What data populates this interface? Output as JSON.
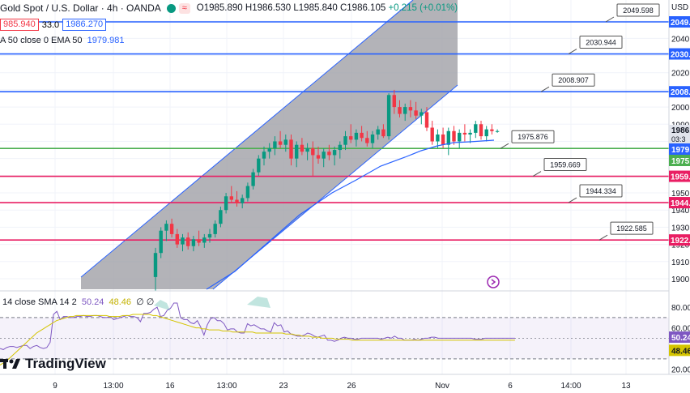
{
  "header": {
    "title": "Gold Spot / U.S. Dollar · 4h · OANDA",
    "open": "O1985.890",
    "high": "H1986.530",
    "low": "L1985.840",
    "close": "C1986.105",
    "change": "+0.215 (+0.01%)",
    "sell_price": "985.940",
    "spread": "33.0",
    "buy_price": "1986.270",
    "ema_label": "A 50 close 0 EMA 50",
    "ema_value": "1979.981"
  },
  "branding": {
    "logo_text": "TradingView"
  },
  "axis": {
    "currency": "USD",
    "ticks": [
      "2050.0",
      "2040.0",
      "2030.0",
      "2020.0",
      "2010.0",
      "2000.0",
      "1990.0",
      "1980.0",
      "1970.0",
      "1960.0",
      "1950.0",
      "1940.0",
      "1930.0",
      "1920.0",
      "1910.0",
      "1900.0"
    ],
    "rsi_ticks": [
      "80.00",
      "60.00",
      "40.00",
      "20.00"
    ],
    "x_ticks": [
      "9",
      "13:00",
      "16",
      "13:00",
      "23",
      "26",
      "Nov",
      "6",
      "14:00",
      "13"
    ],
    "last_price_label": "1986.1",
    "countdown": "03:3",
    "ema_label": "1979.",
    "green_label": "1975."
  },
  "rsi": {
    "label": "14 close SMA 14 2",
    "rsi_value": "50.24",
    "sma_value": "48.46",
    "extra": "∅ ∅",
    "axis_rsi": "50.24",
    "axis_sma": "48.46"
  },
  "colors": {
    "up": "#089981",
    "down": "#f23645",
    "level_blue": "#2962ff",
    "level_green": "#4caf50",
    "level_red": "#e91e63",
    "channel": "#9e9ea4",
    "rsi": "#7e57c2",
    "rsi_sma": "#d4c400"
  },
  "chart_data": {
    "type": "candlestick",
    "ylim": [
      1893,
      2052
    ],
    "levels": [
      {
        "value": 2049.598,
        "label": "2049.598",
        "color": "#2962ff",
        "axis": "2049."
      },
      {
        "value": 2030.944,
        "label": "2030.944",
        "color": "#2962ff",
        "axis": "2030."
      },
      {
        "value": 2008.907,
        "label": "2008.907",
        "color": "#2962ff",
        "axis": "2008."
      },
      {
        "value": 1975.876,
        "label": "1975.876",
        "color": "#4caf50",
        "axis": ""
      },
      {
        "value": 1959.669,
        "label": "1959.669",
        "color": "#e91e63",
        "axis": "1959."
      },
      {
        "value": 1944.334,
        "label": "1944.334",
        "color": "#e91e63",
        "axis": "1944."
      },
      {
        "value": 1922.585,
        "label": "1922.585",
        "color": "#e91e63",
        "axis": "1922."
      }
    ],
    "candles": [
      [
        1901,
        1918,
        1893,
        1915
      ],
      [
        1915,
        1930,
        1912,
        1928
      ],
      [
        1928,
        1934,
        1922,
        1932
      ],
      [
        1932,
        1935,
        1924,
        1926
      ],
      [
        1926,
        1929,
        1918,
        1920
      ],
      [
        1920,
        1926,
        1916,
        1924
      ],
      [
        1924,
        1927,
        1917,
        1919
      ],
      [
        1919,
        1925,
        1916,
        1923
      ],
      [
        1923,
        1928,
        1919,
        1921
      ],
      [
        1921,
        1926,
        1918,
        1924
      ],
      [
        1924,
        1929,
        1921,
        1926
      ],
      [
        1926,
        1934,
        1924,
        1932
      ],
      [
        1932,
        1942,
        1930,
        1940
      ],
      [
        1940,
        1950,
        1938,
        1948
      ],
      [
        1948,
        1954,
        1944,
        1946
      ],
      [
        1946,
        1951,
        1942,
        1944
      ],
      [
        1944,
        1949,
        1941,
        1947
      ],
      [
        1947,
        1956,
        1945,
        1954
      ],
      [
        1954,
        1964,
        1952,
        1962
      ],
      [
        1962,
        1972,
        1960,
        1970
      ],
      [
        1970,
        1977,
        1966,
        1974
      ],
      [
        1974,
        1979,
        1970,
        1976
      ],
      [
        1976,
        1983,
        1972,
        1980
      ],
      [
        1980,
        1986,
        1976,
        1978
      ],
      [
        1978,
        1984,
        1974,
        1981
      ],
      [
        1981,
        1984,
        1966,
        1970
      ],
      [
        1970,
        1980,
        1965,
        1978
      ],
      [
        1978,
        1982,
        1972,
        1974
      ],
      [
        1974,
        1979,
        1969,
        1976
      ],
      [
        1976,
        1980,
        1960,
        1972
      ],
      [
        1972,
        1977,
        1967,
        1970
      ],
      [
        1970,
        1976,
        1965,
        1974
      ],
      [
        1974,
        1978,
        1969,
        1972
      ],
      [
        1972,
        1977,
        1966,
        1975
      ],
      [
        1975,
        1980,
        1970,
        1978
      ],
      [
        1978,
        1986,
        1975,
        1983
      ],
      [
        1983,
        1990,
        1979,
        1981
      ],
      [
        1981,
        1987,
        1977,
        1985
      ],
      [
        1985,
        1989,
        1980,
        1982
      ],
      [
        1982,
        1986,
        1977,
        1979
      ],
      [
        1979,
        1986,
        1976,
        1984
      ],
      [
        1984,
        1989,
        1981,
        1987
      ],
      [
        1987,
        1990,
        1982,
        1983
      ],
      [
        1983,
        2008,
        1981,
        2007
      ],
      [
        2007,
        2010,
        1996,
        2000
      ],
      [
        2000,
        2004,
        1994,
        1996
      ],
      [
        1996,
        2002,
        1992,
        2000
      ],
      [
        2000,
        2004,
        1994,
        1998
      ],
      [
        1998,
        2003,
        1993,
        1995
      ],
      [
        1995,
        1999,
        1990,
        1997
      ],
      [
        1997,
        2000,
        1986,
        1988
      ],
      [
        1988,
        1992,
        1978,
        1980
      ],
      [
        1980,
        1987,
        1976,
        1984
      ],
      [
        1984,
        1988,
        1976,
        1978
      ],
      [
        1978,
        1988,
        1972,
        1986
      ],
      [
        1986,
        1989,
        1978,
        1980
      ],
      [
        1980,
        1987,
        1976,
        1985
      ],
      [
        1985,
        1990,
        1980,
        1984
      ],
      [
        1984,
        1987,
        1979,
        1985
      ],
      [
        1985,
        1992,
        1982,
        1990
      ],
      [
        1990,
        1992,
        1981,
        1983
      ],
      [
        1983,
        1989,
        1980,
        1987
      ],
      [
        1987,
        1990,
        1984,
        1986
      ],
      [
        1986,
        1987,
        1985,
        1986
      ]
    ],
    "rsi": [
      40,
      39,
      41,
      42,
      42,
      41,
      42,
      43,
      43,
      40,
      42,
      43,
      41,
      40,
      41,
      46,
      73,
      76,
      68,
      71,
      71,
      70,
      70,
      71,
      71,
      72,
      71,
      71,
      72,
      72,
      71,
      70,
      70,
      71,
      68,
      69,
      70,
      71,
      72,
      71,
      71,
      70,
      66,
      74,
      74,
      75,
      78,
      80,
      71,
      72,
      77,
      79,
      84,
      84,
      70,
      68,
      68,
      65,
      64,
      67,
      61,
      53,
      63,
      69,
      70,
      67,
      67,
      64,
      58,
      59,
      59,
      56,
      55,
      55,
      64,
      62,
      63,
      61,
      59,
      59,
      57,
      56,
      65,
      62,
      63,
      56,
      57,
      54,
      53,
      52,
      52,
      53,
      55,
      54,
      52,
      51,
      52,
      53,
      48,
      48,
      47,
      48,
      50,
      51,
      50,
      50,
      49,
      49,
      50,
      50,
      50,
      50,
      50,
      50,
      49,
      50,
      51,
      50,
      52,
      50,
      50,
      48,
      48,
      48,
      49,
      48,
      49,
      50,
      50,
      51,
      51,
      50,
      50,
      50,
      50,
      50,
      50,
      50,
      50,
      50,
      50,
      50,
      49,
      49,
      49,
      50,
      50,
      50,
      50,
      50,
      50,
      50,
      50,
      50,
      50
    ],
    "rsi_sma": [
      24,
      26,
      28,
      31,
      34,
      37,
      40,
      43,
      46,
      49,
      52,
      55,
      57,
      59,
      61,
      63,
      65,
      67,
      68,
      69,
      70,
      71,
      71,
      72,
      72,
      72,
      72,
      72,
      72,
      72,
      72,
      72,
      72,
      71,
      71,
      71,
      71,
      72,
      72,
      72,
      73,
      73,
      73,
      73,
      73,
      73,
      72,
      72,
      71,
      70,
      69,
      68,
      67,
      66,
      65,
      64,
      63,
      62,
      61,
      60,
      60,
      59,
      59,
      58,
      58,
      58,
      58,
      57,
      57,
      57,
      56,
      56,
      56,
      56,
      56,
      56,
      56,
      55,
      55,
      55,
      55,
      55,
      55,
      55,
      55,
      55,
      54,
      54,
      54,
      53,
      53,
      52,
      52,
      52,
      51,
      51,
      51,
      50,
      50,
      50,
      50,
      49,
      49,
      49,
      49,
      49,
      48,
      48,
      48,
      48,
      48,
      48,
      48,
      48,
      48,
      48,
      48,
      48,
      48,
      48,
      48,
      48,
      48,
      48,
      48,
      48,
      48,
      48,
      48,
      48,
      48,
      48,
      48,
      48,
      48,
      48,
      48,
      48,
      48,
      48,
      48,
      48,
      48,
      48,
      48,
      48,
      48,
      48,
      48,
      48,
      48,
      48,
      48,
      48,
      48,
      48
    ],
    "rsi_ylim": [
      15,
      95
    ],
    "rsi_levels": [
      70,
      30
    ]
  }
}
